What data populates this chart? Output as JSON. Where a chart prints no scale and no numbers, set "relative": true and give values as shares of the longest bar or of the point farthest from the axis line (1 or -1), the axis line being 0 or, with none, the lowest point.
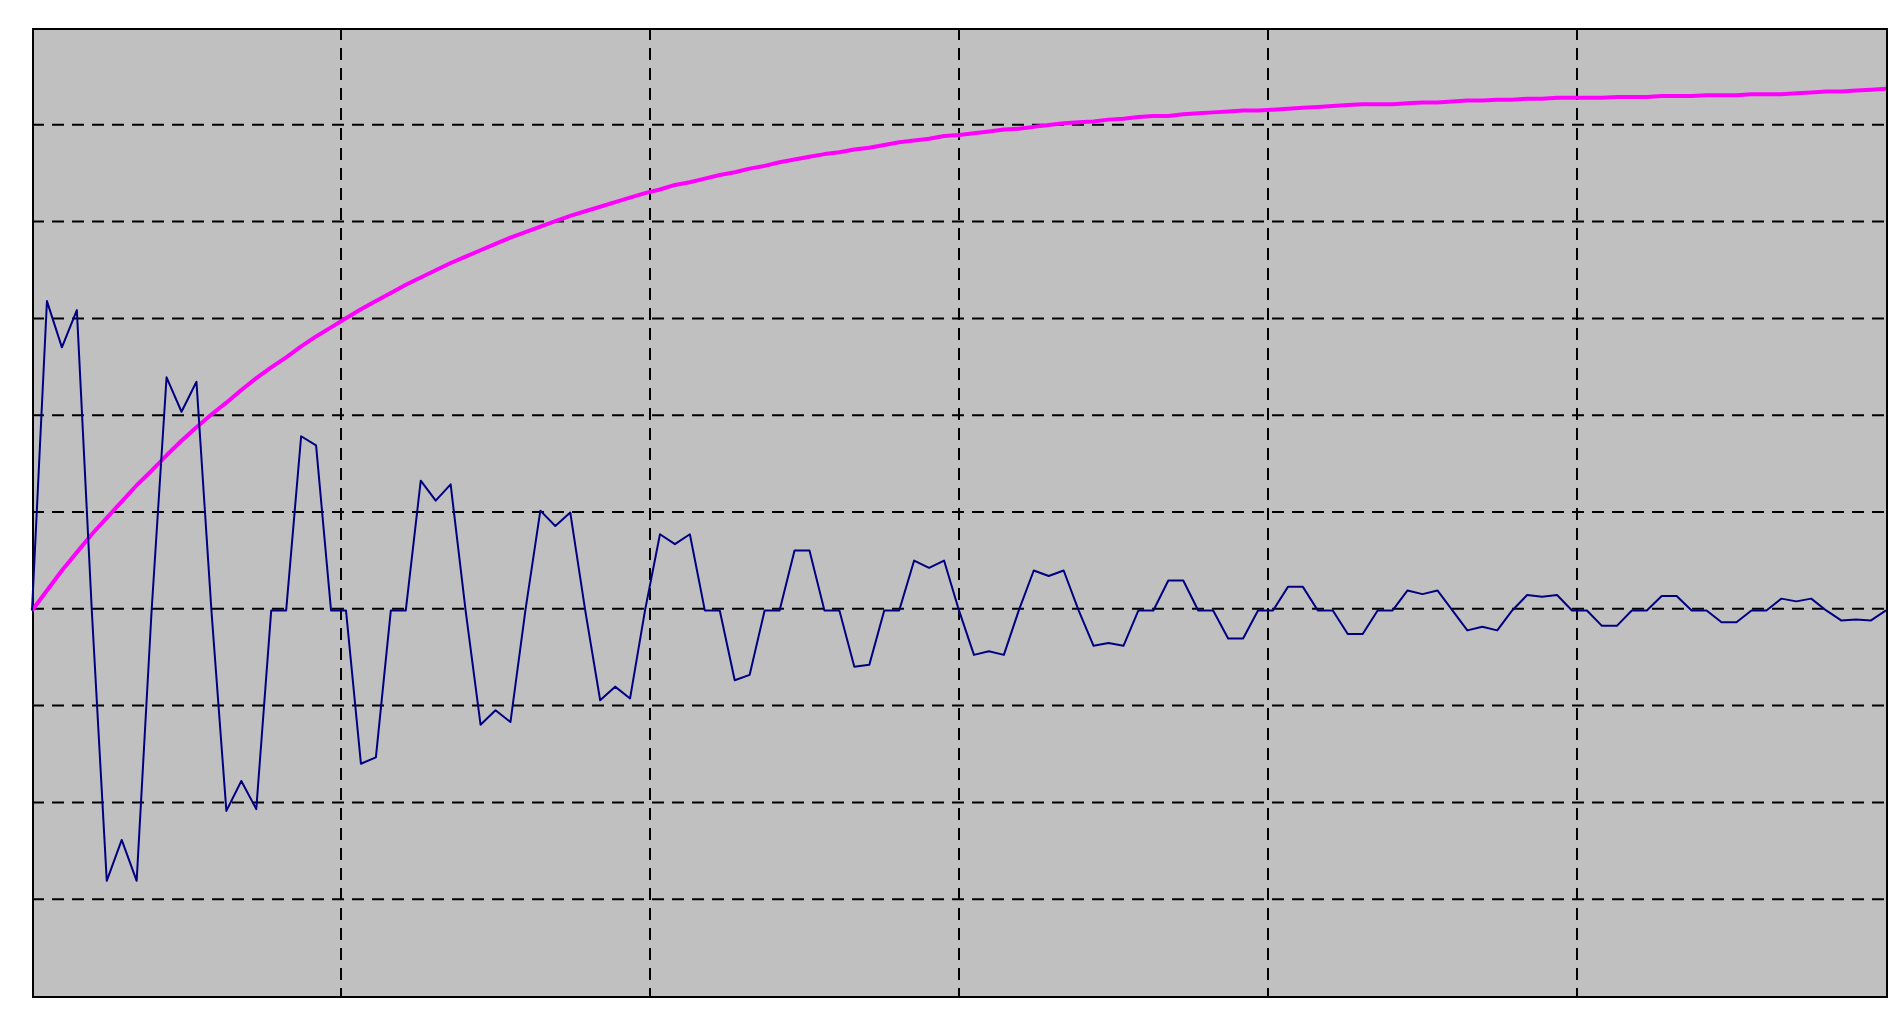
{
  "chart_data": {
    "type": "line",
    "relative": true,
    "grid": true,
    "line_style": "solid",
    "marker": "none",
    "categories": [
      null,
      null,
      null,
      null,
      null,
      null,
      null,
      null,
      null,
      null,
      null,
      null,
      null,
      null,
      null,
      null,
      null,
      null,
      null,
      null,
      null,
      null,
      null,
      null,
      null,
      null,
      null,
      null,
      null,
      null,
      null,
      null,
      null,
      null,
      null,
      null,
      null,
      null,
      null,
      null,
      null,
      null,
      null,
      null,
      null,
      null,
      null,
      null,
      null,
      null,
      null,
      null,
      null,
      null,
      null,
      null,
      null,
      null,
      null,
      null,
      null,
      null,
      null,
      null,
      null,
      null,
      null,
      null,
      null,
      null,
      null,
      null,
      null,
      null,
      null,
      null,
      null,
      null,
      null,
      null,
      null,
      null,
      null,
      null,
      null,
      null,
      null,
      null,
      null,
      null,
      null,
      null,
      null,
      null,
      null,
      null,
      null,
      null,
      null,
      null,
      null,
      null,
      null,
      null,
      null,
      null,
      null,
      null,
      null,
      null,
      null,
      null,
      null,
      null,
      null,
      null,
      null,
      null,
      null,
      null,
      null,
      null,
      null,
      null,
      null
    ],
    "series": [
      {
        "color": "#ff00ff",
        "values": [
          0.425,
          0.447,
          0.469,
          0.489,
          0.509,
          0.527,
          0.545,
          0.563,
          0.579,
          0.596,
          0.612,
          0.627,
          0.641,
          0.654,
          0.668,
          0.681,
          0.693,
          0.704,
          0.716,
          0.727,
          0.737,
          0.747,
          0.757,
          0.766,
          0.775,
          0.784,
          0.792,
          0.8,
          0.808,
          0.815,
          0.822,
          0.829,
          0.836,
          0.842,
          0.848,
          0.854,
          0.86,
          0.865,
          0.87,
          0.875,
          0.88,
          0.885,
          0.889,
          0.894,
          0.897,
          0.901,
          0.905,
          0.908,
          0.912,
          0.915,
          0.919,
          0.922,
          0.925,
          0.928,
          0.93,
          0.933,
          0.935,
          0.938,
          0.941,
          0.943,
          0.945,
          0.948,
          0.949,
          0.951,
          0.953,
          0.955,
          0.956,
          0.958,
          0.96,
          0.962,
          0.963,
          0.964,
          0.966,
          0.967,
          0.969,
          0.97,
          0.97,
          0.972,
          0.973,
          0.974,
          0.975,
          0.976,
          0.976,
          0.977,
          0.978,
          0.979,
          0.98,
          0.981,
          0.982,
          0.983,
          0.983,
          0.983,
          0.984,
          0.985,
          0.985,
          0.986,
          0.987,
          0.987,
          0.988,
          0.988,
          0.989,
          0.989,
          0.99,
          0.99,
          0.99,
          0.99,
          0.991,
          0.991,
          0.991,
          0.992,
          0.992,
          0.992,
          0.993,
          0.993,
          0.993,
          0.994,
          0.994,
          0.994,
          0.995,
          0.996,
          0.997,
          0.997,
          0.998,
          0.999,
          1.0
        ]
      },
      {
        "color": "#000080",
        "values": [
          0.425,
          0.766,
          0.715,
          0.756,
          0.425,
          0.127,
          0.172,
          0.127,
          0.425,
          0.682,
          0.644,
          0.677,
          0.425,
          0.204,
          0.237,
          0.206,
          0.425,
          0.425,
          0.617,
          0.607,
          0.425,
          0.425,
          0.256,
          0.263,
          0.425,
          0.425,
          0.568,
          0.546,
          0.564,
          0.425,
          0.299,
          0.315,
          0.302,
          0.425,
          0.535,
          0.518,
          0.533,
          0.425,
          0.326,
          0.341,
          0.328,
          0.425,
          0.509,
          0.498,
          0.509,
          0.425,
          0.425,
          0.348,
          0.354,
          0.425,
          0.425,
          0.491,
          0.491,
          0.425,
          0.425,
          0.363,
          0.365,
          0.425,
          0.425,
          0.48,
          0.472,
          0.48,
          0.425,
          0.376,
          0.38,
          0.376,
          0.425,
          0.469,
          0.463,
          0.469,
          0.425,
          0.386,
          0.389,
          0.386,
          0.425,
          0.425,
          0.458,
          0.458,
          0.425,
          0.425,
          0.394,
          0.394,
          0.425,
          0.425,
          0.451,
          0.451,
          0.425,
          0.425,
          0.399,
          0.399,
          0.425,
          0.425,
          0.447,
          0.443,
          0.447,
          0.425,
          0.403,
          0.407,
          0.403,
          0.425,
          0.442,
          0.44,
          0.442,
          0.425,
          0.425,
          0.408,
          0.408,
          0.425,
          0.425,
          0.441,
          0.441,
          0.425,
          0.425,
          0.412,
          0.412,
          0.425,
          0.425,
          0.438,
          0.435,
          0.438,
          0.425,
          0.414,
          0.415,
          0.414,
          0.425
        ]
      }
    ]
  }
}
